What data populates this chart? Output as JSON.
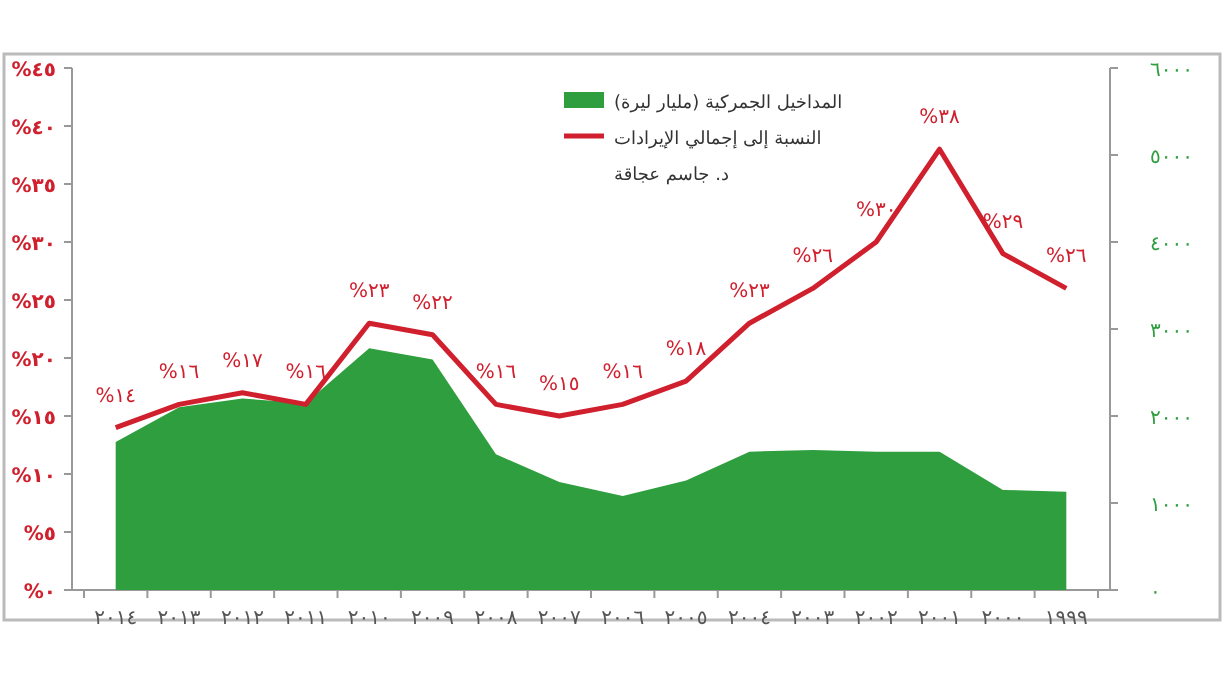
{
  "chart_data": {
    "type": "line",
    "categories": [
      "٢٠١٤",
      "٢٠١٣",
      "٢٠١٢",
      "٢٠١١",
      "٢٠١٠",
      "٢٠٠٩",
      "٢٠٠٨",
      "٢٠٠٧",
      "٢٠٠٦",
      "٢٠٠٥",
      "٢٠٠٤",
      "٢٠٠٣",
      "٢٠٠٢",
      "٢٠٠١",
      "٢٠٠٠",
      "١٩٩٩"
    ],
    "series": [
      {
        "name": "المداخيل الجمركية (مليار ليرة)",
        "type": "area",
        "axis": "y2",
        "color": "#2e9e3e",
        "values": [
          1700,
          2100,
          2200,
          2150,
          2780,
          2650,
          1560,
          1240,
          1080,
          1260,
          1590,
          1610,
          1590,
          1590,
          1150,
          1130
        ]
      },
      {
        "name": "النسبة إلى إجمالي الإيرادات",
        "axis": "y",
        "color": "#d0202e",
        "values": [
          14,
          16,
          17,
          16,
          23,
          22,
          16,
          15,
          16,
          18,
          23,
          26,
          30,
          38,
          29,
          26
        ],
        "value_labels": [
          "%١٤",
          "%١٦",
          "%١٧",
          "%١٦",
          "%٢٣",
          "%٢٢",
          "%١٦",
          "%١٥",
          "%١٦",
          "%١٨",
          "%٢٣",
          "%٢٦",
          "%٣٠",
          "%٣٨",
          "%٢٩",
          "%٢٦"
        ]
      }
    ],
    "ylim": [
      0,
      45
    ],
    "yticks": [
      {
        "value": 0,
        "label": "%٠"
      },
      {
        "value": 5,
        "label": "%٥"
      },
      {
        "value": 10,
        "label": "%١٠"
      },
      {
        "value": 15,
        "label": "%١٥"
      },
      {
        "value": 20,
        "label": "%٢٠"
      },
      {
        "value": 25,
        "label": "%٢٥"
      },
      {
        "value": 30,
        "label": "%٣٠"
      },
      {
        "value": 35,
        "label": "%٣٥"
      },
      {
        "value": 40,
        "label": "%٤٠"
      },
      {
        "value": 45,
        "label": "%٤٥"
      }
    ],
    "y2lim": [
      0,
      6000
    ],
    "y2ticks": [
      {
        "value": 0,
        "label": "٠"
      },
      {
        "value": 1000,
        "label": "١٠٠٠"
      },
      {
        "value": 2000,
        "label": "٢٠٠٠"
      },
      {
        "value": 3000,
        "label": "٣٠٠٠"
      },
      {
        "value": 4000,
        "label": "٤٠٠٠"
      },
      {
        "value": 5000,
        "label": "٥٠٠٠"
      },
      {
        "value": 6000,
        "label": "٦٠٠٠"
      }
    ],
    "legend": "top",
    "annotations": [
      "د. جاسم عجاقة"
    ]
  }
}
